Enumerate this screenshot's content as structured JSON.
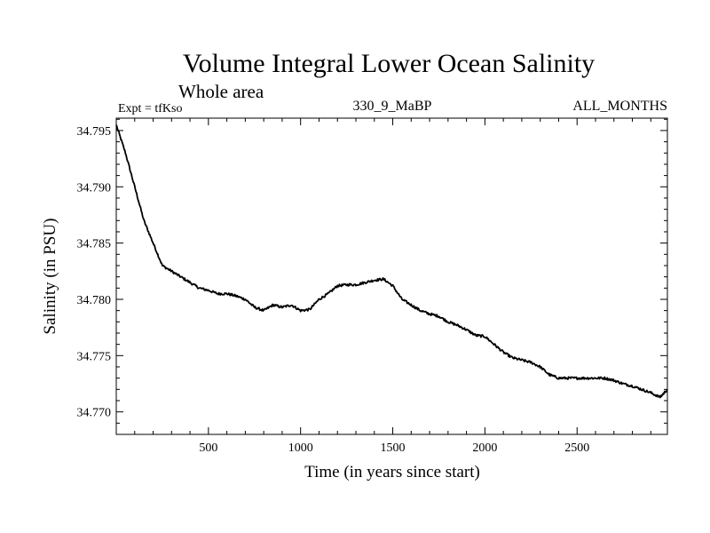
{
  "chart_data": {
    "type": "line",
    "title": "Volume Integral Lower Ocean Salinity",
    "subtitle": "Whole area",
    "experiment_label": "Expt = tfKso",
    "center_label": "330_9_MaBP",
    "right_label": "ALL_MONTHS",
    "xlabel": "Time (in years since start)",
    "ylabel": "Salinity (in PSU)",
    "xlim": [
      0,
      2990
    ],
    "ylim": [
      34.768,
      34.7961
    ],
    "x_ticks": [
      500,
      1000,
      1500,
      2000,
      2500
    ],
    "x_tick_labels": [
      "500",
      "1000",
      "1500",
      "2000",
      "2500"
    ],
    "y_ticks": [
      34.77,
      34.775,
      34.78,
      34.785,
      34.79,
      34.795
    ],
    "y_tick_labels": [
      "34.770",
      "34.775",
      "34.780",
      "34.785",
      "34.790",
      "34.795"
    ],
    "grid": false,
    "series": [
      {
        "name": "Salinity",
        "color": "#000000",
        "x": [
          0,
          50,
          100,
          150,
          200,
          250,
          300,
          350,
          400,
          450,
          500,
          550,
          600,
          650,
          700,
          750,
          800,
          850,
          900,
          950,
          1000,
          1050,
          1100,
          1150,
          1200,
          1250,
          1300,
          1350,
          1400,
          1450,
          1500,
          1550,
          1600,
          1650,
          1700,
          1750,
          1800,
          1850,
          1900,
          1950,
          2000,
          2050,
          2100,
          2150,
          2200,
          2250,
          2300,
          2350,
          2400,
          2450,
          2500,
          2550,
          2600,
          2650,
          2700,
          2750,
          2800,
          2850,
          2900,
          2950,
          2990
        ],
        "values": [
          34.7955,
          34.793,
          34.79,
          34.787,
          34.785,
          34.783,
          34.7825,
          34.782,
          34.7815,
          34.781,
          34.7808,
          34.7805,
          34.7805,
          34.7803,
          34.78,
          34.7793,
          34.779,
          34.7795,
          34.7793,
          34.7795,
          34.779,
          34.7791,
          34.78,
          34.7805,
          34.7812,
          34.7813,
          34.7813,
          34.7815,
          34.7817,
          34.7818,
          34.7812,
          34.78,
          34.7795,
          34.779,
          34.7787,
          34.7785,
          34.778,
          34.7777,
          34.7773,
          34.7768,
          34.7767,
          34.776,
          34.7753,
          34.7748,
          34.7746,
          34.7744,
          34.774,
          34.7733,
          34.773,
          34.773,
          34.773,
          34.773,
          34.773,
          34.773,
          34.7728,
          34.7725,
          34.7723,
          34.772,
          34.7717,
          34.7713,
          34.772
        ]
      }
    ]
  }
}
